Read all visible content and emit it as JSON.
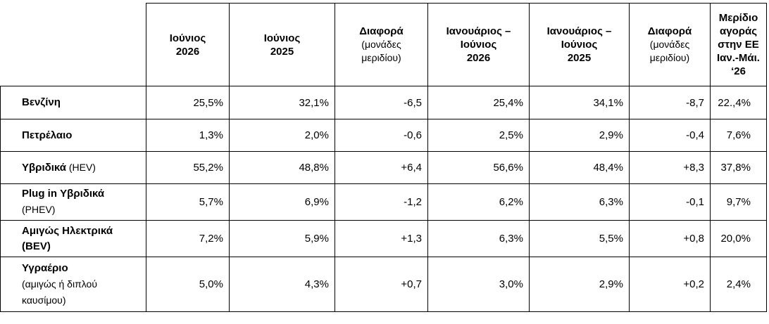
{
  "header": {
    "col1": {
      "line1": "Ιούνιος",
      "line2": "2026"
    },
    "col2": {
      "line1": "Ιούνιος",
      "line2": "2025"
    },
    "col3": {
      "line1": "Διαφορά",
      "sub1": "(μονάδες",
      "sub2": "μεριδίου)"
    },
    "col4": {
      "line1": "Ιανουάριος –",
      "line2": "Ιούνιος",
      "line3": "2026"
    },
    "col5": {
      "line1": "Ιανουάριος –",
      "line2": "Ιούνιος",
      "line3": "2025"
    },
    "col6": {
      "line1": "Διαφορά",
      "sub1": "(μονάδες",
      "sub2": "μεριδίου)"
    },
    "col7": {
      "line1": "Μερίδιο",
      "line2": "αγοράς",
      "line3": "στην ΕΕ",
      "line4": "Ιαν.-Μάι.",
      "line5": "‘26"
    }
  },
  "rows": [
    {
      "label": "Βενζίνη",
      "values": [
        "25,5%",
        "32,1%",
        "-6,5",
        "25,4%",
        "34,1%",
        "-8,7",
        "22.,4%"
      ]
    },
    {
      "label": "Πετρέλαιο",
      "values": [
        "1,3%",
        "2,0%",
        "-0,6",
        "2,5%",
        "2,9%",
        "-0,4",
        "7,6%"
      ]
    },
    {
      "label": "Υβριδικά",
      "note": " (HEV)",
      "values": [
        "55,2%",
        "48,8%",
        "+6,4",
        "56,6%",
        "48,4%",
        "+8,3",
        "37,8%"
      ]
    },
    {
      "label": "Plug in Υβριδικά",
      "note": "(PHEV)",
      "values": [
        "5,7%",
        "6,9%",
        "-1,2",
        "6,2%",
        "6,3%",
        "-0,1",
        "9,7%"
      ]
    },
    {
      "label": "Αμιγώς Ηλεκτρικά",
      "note": "(BEV)",
      "values": [
        "7,2%",
        "5,9%",
        "+1,3",
        "6,3%",
        "5,5%",
        "+0,8",
        "20,0%"
      ]
    },
    {
      "label": "Υγραέριο",
      "note": "(αμιγώς ή διπλού",
      "note2": "καυσίμου)",
      "values": [
        "5,0%",
        "4,3%",
        "+0,7",
        "3,0%",
        "2,9%",
        "+0,2",
        "2,4%"
      ]
    }
  ]
}
